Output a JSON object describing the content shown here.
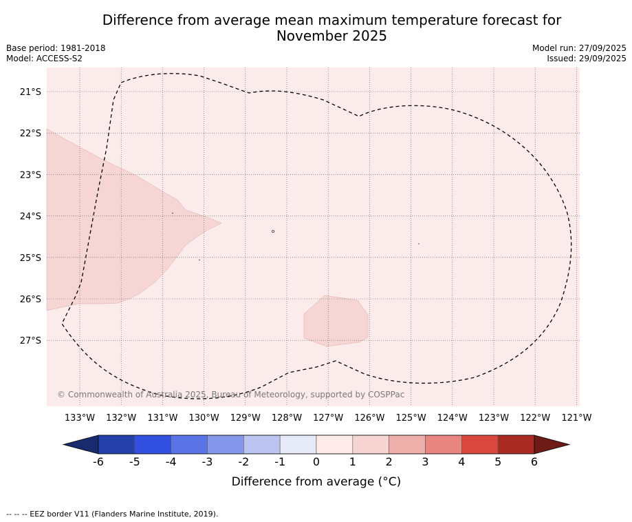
{
  "title_line1": "Difference from average mean maximum temperature forecast for",
  "title_line2": "November 2025",
  "base_period": "Base period: 1981-2018",
  "model": "Model: ACCESS-S2",
  "model_run": "Model run: 27/09/2025",
  "issued": "Issued: 29/09/2025",
  "copyright": "© Commonwealth of Australia 2025, Bureau of Meteorology, supported by COSPPac",
  "longitude_labels": [
    "133°W",
    "132°W",
    "131°W",
    "130°W",
    "129°W",
    "128°W",
    "127°W",
    "126°W",
    "125°W",
    "124°W",
    "123°W",
    "122°W",
    "121°W"
  ],
  "latitude_labels": [
    "21°S",
    "22°S",
    "23°S",
    "24°S",
    "25°S",
    "26°S",
    "27°S"
  ],
  "colorbar": {
    "title": "Difference from average (°C)",
    "ticks": [
      "-6",
      "-5",
      "-4",
      "-3",
      "-2",
      "-1",
      "0",
      "1",
      "2",
      "3",
      "4",
      "5",
      "6"
    ],
    "colors": [
      "#2540a8",
      "#3150df",
      "#5a73e6",
      "#8597ea",
      "#bcc5f0",
      "#e6e9f8",
      "#fcebe9",
      "#f5d4d2",
      "#eeaea9",
      "#e8857f",
      "#d9483e",
      "#a82a23"
    ],
    "low_extend_color": "#1a2a6f",
    "high_extend_color": "#6e1a16"
  },
  "map_colors": {
    "background_class": "#fbebea",
    "anomaly_class": "#f5d6d4"
  },
  "footer": "--  --  -- EEZ border V11 (Flanders Marine Institute, 2019)."
}
